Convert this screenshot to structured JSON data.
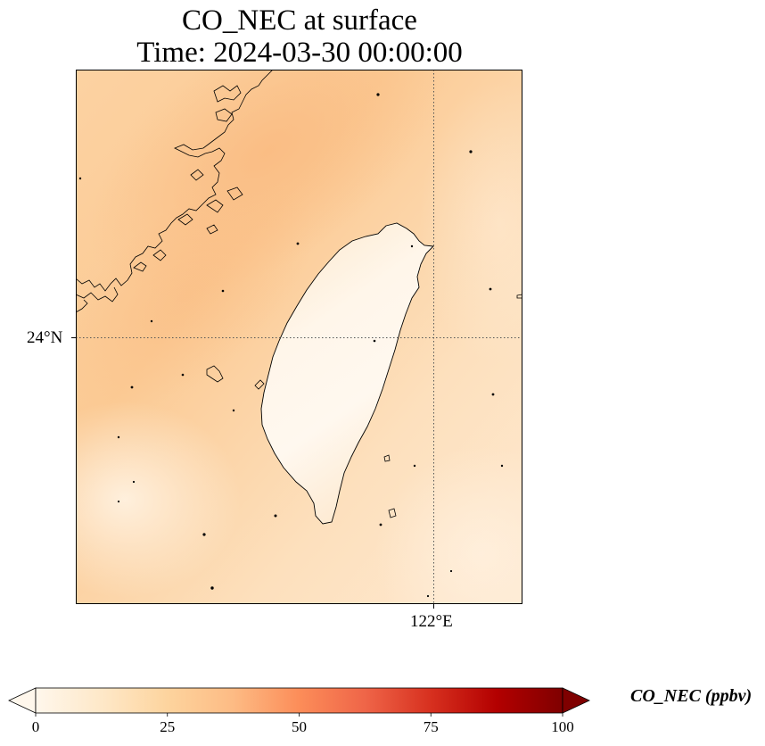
{
  "title": {
    "line1": "CO_NEC at surface",
    "line2": "Time: 2024-03-30 00:00:00"
  },
  "map": {
    "region": "Taiwan Strait",
    "projection": "PlateCarree",
    "gridlines": "dotted",
    "lat_gridline": {
      "label": "24°N",
      "value": 24
    },
    "lon_gridline": {
      "label": "122°E",
      "value": 122
    },
    "field_description": "CO_NEC surface concentration, low values over Taiwan (~0-5 ppbv), higher values over mainland coast and strait (~20-25 ppbv)"
  },
  "colorbar": {
    "label": "CO_NEC (ppbv)",
    "colormap": "OrRd",
    "extend": "both",
    "min": 0,
    "max": 100,
    "ticks": [
      {
        "value": 0,
        "label": "0"
      },
      {
        "value": 25,
        "label": "25"
      },
      {
        "value": 50,
        "label": "50"
      },
      {
        "value": 75,
        "label": "75"
      },
      {
        "value": 100,
        "label": "100"
      }
    ],
    "colors": [
      "#fff7ec",
      "#fee8c8",
      "#fdd49e",
      "#fdbb84",
      "#fc8d59",
      "#ef6548",
      "#d7301f",
      "#b30000",
      "#7f0000"
    ]
  }
}
